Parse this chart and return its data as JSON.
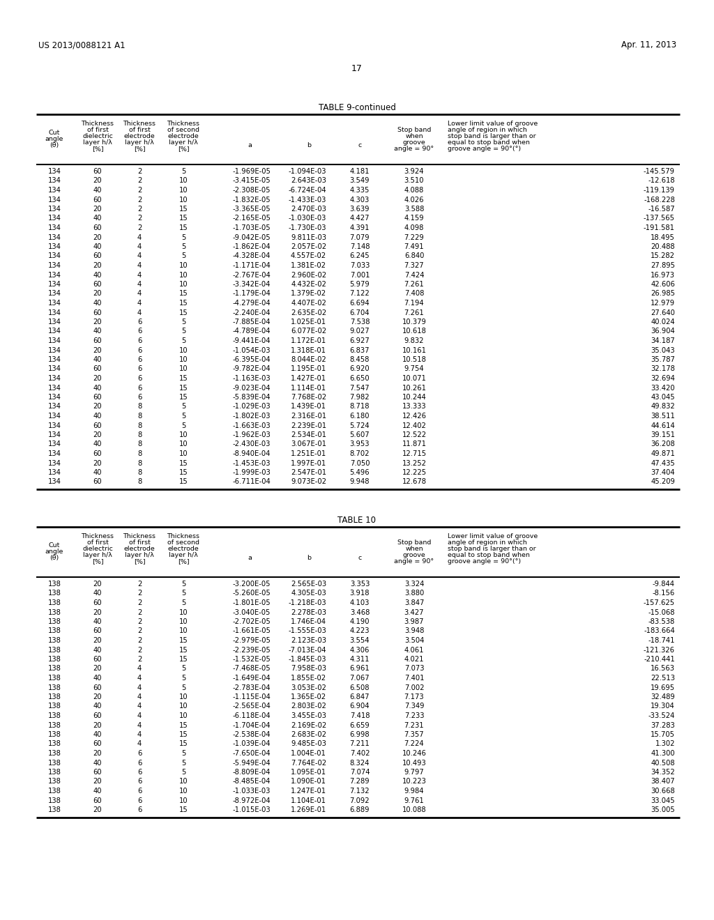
{
  "page_header_left": "US 2013/0088121 A1",
  "page_header_right": "Apr. 11, 2013",
  "page_number": "17",
  "table9_title": "TABLE 9-continued",
  "table10_title": "TABLE 10",
  "table9_data": [
    [
      134,
      60,
      2,
      5,
      "-1.969E-05",
      "-1.094E-03",
      "4.181",
      "3.924",
      "-145.579"
    ],
    [
      134,
      20,
      2,
      10,
      "-3.415E-05",
      "2.643E-03",
      "3.549",
      "3.510",
      "-12.618"
    ],
    [
      134,
      40,
      2,
      10,
      "-2.308E-05",
      "-6.724E-04",
      "4.335",
      "4.088",
      "-119.139"
    ],
    [
      134,
      60,
      2,
      10,
      "-1.832E-05",
      "-1.433E-03",
      "4.303",
      "4.026",
      "-168.228"
    ],
    [
      134,
      20,
      2,
      15,
      "-3.365E-05",
      "2.470E-03",
      "3.639",
      "3.588",
      "-16.587"
    ],
    [
      134,
      40,
      2,
      15,
      "-2.165E-05",
      "-1.030E-03",
      "4.427",
      "4.159",
      "-137.565"
    ],
    [
      134,
      60,
      2,
      15,
      "-1.703E-05",
      "-1.730E-03",
      "4.391",
      "4.098",
      "-191.581"
    ],
    [
      134,
      20,
      4,
      5,
      "-9.042E-05",
      "9.811E-03",
      "7.079",
      "7.229",
      "18.495"
    ],
    [
      134,
      40,
      4,
      5,
      "-1.862E-04",
      "2.057E-02",
      "7.148",
      "7.491",
      "20.488"
    ],
    [
      134,
      60,
      4,
      5,
      "-4.328E-04",
      "4.557E-02",
      "6.245",
      "6.840",
      "15.282"
    ],
    [
      134,
      20,
      4,
      10,
      "-1.171E-04",
      "1.381E-02",
      "7.033",
      "7.327",
      "27.895"
    ],
    [
      134,
      40,
      4,
      10,
      "-2.767E-04",
      "2.960E-02",
      "7.001",
      "7.424",
      "16.973"
    ],
    [
      134,
      60,
      4,
      10,
      "-3.342E-04",
      "4.432E-02",
      "5.979",
      "7.261",
      "42.606"
    ],
    [
      134,
      20,
      4,
      15,
      "-1.179E-04",
      "1.379E-02",
      "7.122",
      "7.408",
      "26.985"
    ],
    [
      134,
      40,
      4,
      15,
      "-4.279E-04",
      "4.407E-02",
      "6.694",
      "7.194",
      "12.979"
    ],
    [
      134,
      60,
      4,
      15,
      "-2.240E-04",
      "2.635E-02",
      "6.704",
      "7.261",
      "27.640"
    ],
    [
      134,
      20,
      6,
      5,
      "-7.885E-04",
      "1.025E-01",
      "7.538",
      "10.379",
      "40.024"
    ],
    [
      134,
      40,
      6,
      5,
      "-4.789E-04",
      "6.077E-02",
      "9.027",
      "10.618",
      "36.904"
    ],
    [
      134,
      60,
      6,
      5,
      "-9.441E-04",
      "1.172E-01",
      "6.927",
      "9.832",
      "34.187"
    ],
    [
      134,
      20,
      6,
      10,
      "-1.054E-03",
      "1.318E-01",
      "6.837",
      "10.161",
      "35.043"
    ],
    [
      134,
      40,
      6,
      10,
      "-6.395E-04",
      "8.044E-02",
      "8.458",
      "10.518",
      "35.787"
    ],
    [
      134,
      60,
      6,
      10,
      "-9.782E-04",
      "1.195E-01",
      "6.920",
      "9.754",
      "32.178"
    ],
    [
      134,
      20,
      6,
      15,
      "-1.163E-03",
      "1.427E-01",
      "6.650",
      "10.071",
      "32.694"
    ],
    [
      134,
      40,
      6,
      15,
      "-9.023E-04",
      "1.114E-01",
      "7.547",
      "10.261",
      "33.420"
    ],
    [
      134,
      60,
      6,
      15,
      "-5.839E-04",
      "7.768E-02",
      "7.982",
      "10.244",
      "43.045"
    ],
    [
      134,
      20,
      8,
      5,
      "-1.029E-03",
      "1.439E-01",
      "8.718",
      "13.333",
      "49.832"
    ],
    [
      134,
      40,
      8,
      5,
      "-1.802E-03",
      "2.316E-01",
      "6.180",
      "12.426",
      "38.511"
    ],
    [
      134,
      60,
      8,
      5,
      "-1.663E-03",
      "2.239E-01",
      "5.724",
      "12.402",
      "44.614"
    ],
    [
      134,
      20,
      8,
      10,
      "-1.962E-03",
      "2.534E-01",
      "5.607",
      "12.522",
      "39.151"
    ],
    [
      134,
      40,
      8,
      10,
      "-2.430E-03",
      "3.067E-01",
      "3.953",
      "11.871",
      "36.208"
    ],
    [
      134,
      60,
      8,
      10,
      "-8.940E-04",
      "1.251E-01",
      "8.702",
      "12.715",
      "49.871"
    ],
    [
      134,
      20,
      8,
      15,
      "-1.453E-03",
      "1.997E-01",
      "7.050",
      "13.252",
      "47.435"
    ],
    [
      134,
      40,
      8,
      15,
      "-1.999E-03",
      "2.547E-01",
      "5.496",
      "12.225",
      "37.404"
    ],
    [
      134,
      60,
      8,
      15,
      "-6.711E-04",
      "9.073E-02",
      "9.948",
      "12.678",
      "45.209"
    ]
  ],
  "table10_data": [
    [
      138,
      20,
      2,
      5,
      "-3.200E-05",
      "2.565E-03",
      "3.353",
      "3.324",
      "-9.844"
    ],
    [
      138,
      40,
      2,
      5,
      "-5.260E-05",
      "4.305E-03",
      "3.918",
      "3.880",
      "-8.156"
    ],
    [
      138,
      60,
      2,
      5,
      "-1.801E-05",
      "-1.218E-03",
      "4.103",
      "3.847",
      "-157.625"
    ],
    [
      138,
      20,
      2,
      10,
      "-3.040E-05",
      "2.278E-03",
      "3.468",
      "3.427",
      "-15.068"
    ],
    [
      138,
      40,
      2,
      10,
      "-2.702E-05",
      "1.746E-04",
      "4.190",
      "3.987",
      "-83.538"
    ],
    [
      138,
      60,
      2,
      10,
      "-1.661E-05",
      "-1.555E-03",
      "4.223",
      "3.948",
      "-183.664"
    ],
    [
      138,
      20,
      2,
      15,
      "-2.979E-05",
      "2.123E-03",
      "3.554",
      "3.504",
      "-18.741"
    ],
    [
      138,
      40,
      2,
      15,
      "-2.239E-05",
      "-7.013E-04",
      "4.306",
      "4.061",
      "-121.326"
    ],
    [
      138,
      60,
      2,
      15,
      "-1.532E-05",
      "-1.845E-03",
      "4.311",
      "4.021",
      "-210.441"
    ],
    [
      138,
      20,
      4,
      5,
      "-7.468E-05",
      "7.958E-03",
      "6.961",
      "7.073",
      "16.563"
    ],
    [
      138,
      40,
      4,
      5,
      "-1.649E-04",
      "1.855E-02",
      "7.067",
      "7.401",
      "22.513"
    ],
    [
      138,
      60,
      4,
      5,
      "-2.783E-04",
      "3.053E-02",
      "6.508",
      "7.002",
      "19.695"
    ],
    [
      138,
      20,
      4,
      10,
      "-1.115E-04",
      "1.365E-02",
      "6.847",
      "7.173",
      "32.489"
    ],
    [
      138,
      40,
      4,
      10,
      "-2.565E-04",
      "2.803E-02",
      "6.904",
      "7.349",
      "19.304"
    ],
    [
      138,
      60,
      4,
      10,
      "-6.118E-04",
      "3.455E-03",
      "7.418",
      "7.233",
      "-33.524"
    ],
    [
      138,
      20,
      4,
      15,
      "-1.704E-04",
      "2.169E-02",
      "6.659",
      "7.231",
      "37.283"
    ],
    [
      138,
      40,
      4,
      15,
      "-2.538E-04",
      "2.683E-02",
      "6.998",
      "7.357",
      "15.705"
    ],
    [
      138,
      60,
      4,
      15,
      "-1.039E-04",
      "9.485E-03",
      "7.211",
      "7.224",
      "1.302"
    ],
    [
      138,
      20,
      6,
      5,
      "-7.650E-04",
      "1.004E-01",
      "7.402",
      "10.246",
      "41.300"
    ],
    [
      138,
      40,
      6,
      5,
      "-5.949E-04",
      "7.764E-02",
      "8.324",
      "10.493",
      "40.508"
    ],
    [
      138,
      60,
      6,
      5,
      "-8.809E-04",
      "1.095E-01",
      "7.074",
      "9.797",
      "34.352"
    ],
    [
      138,
      20,
      6,
      10,
      "-8.485E-04",
      "1.090E-01",
      "7.289",
      "10.223",
      "38.407"
    ],
    [
      138,
      40,
      6,
      10,
      "-1.033E-03",
      "1.247E-01",
      "7.132",
      "9.984",
      "30.668"
    ],
    [
      138,
      60,
      6,
      10,
      "-8.972E-04",
      "1.104E-01",
      "7.092",
      "9.761",
      "33.045"
    ],
    [
      138,
      20,
      6,
      15,
      "-1.015E-03",
      "1.269E-01",
      "6.889",
      "10.088",
      "35.005"
    ]
  ],
  "bg_color": "#ffffff"
}
